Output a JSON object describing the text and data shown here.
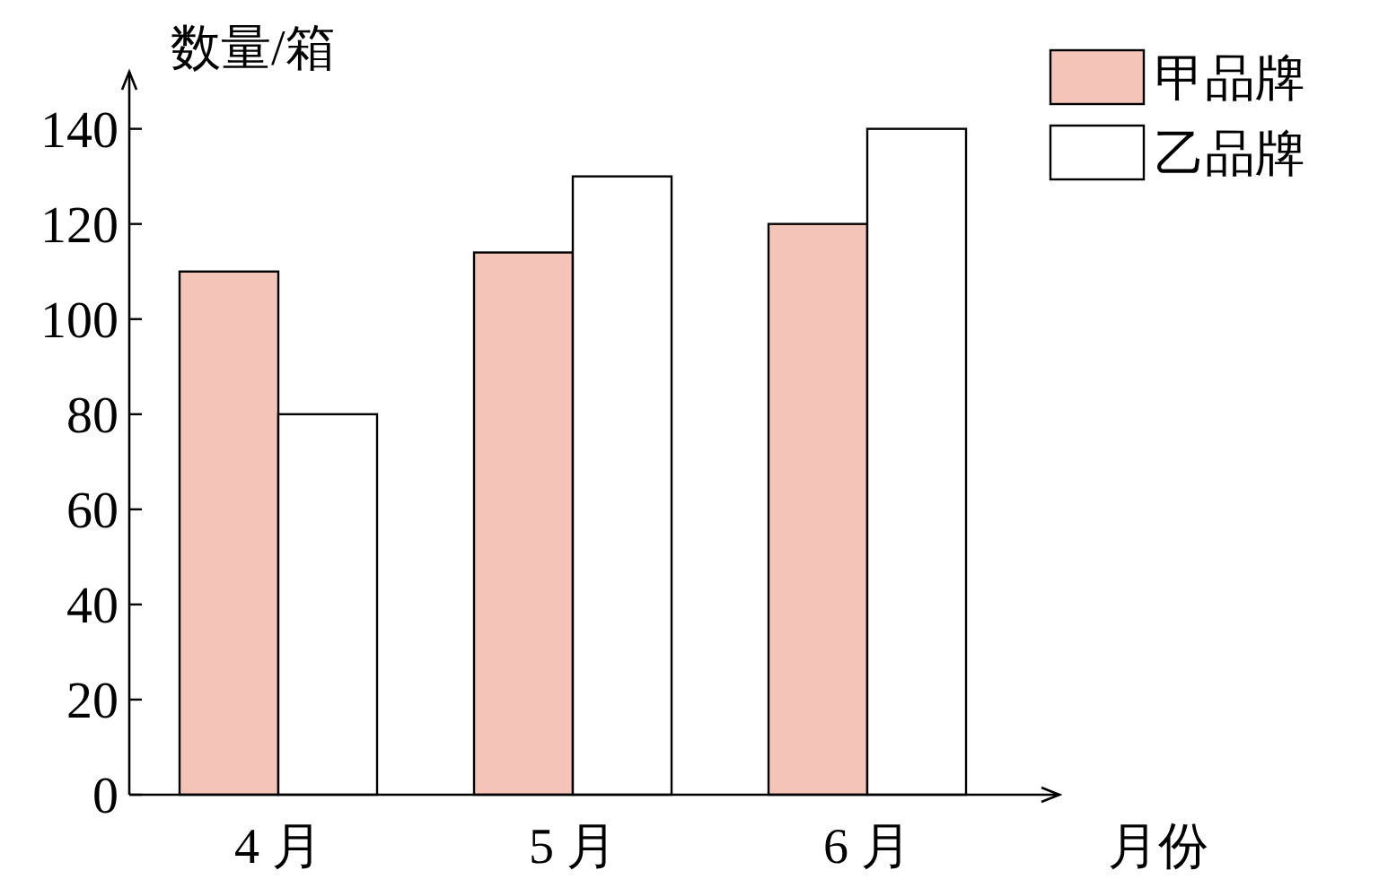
{
  "chart_data": {
    "type": "bar",
    "ylabel": "数量/箱",
    "xlabel": "月份",
    "categories": [
      "4 月",
      "5 月",
      "6 月"
    ],
    "series": [
      {
        "name": "甲品牌",
        "color": "#f4c4b8",
        "values": [
          110,
          114,
          120
        ]
      },
      {
        "name": "乙品牌",
        "color": "#ffffff",
        "values": [
          80,
          130,
          140
        ]
      }
    ],
    "ylim": [
      0,
      152
    ],
    "yticks": [
      0,
      20,
      40,
      60,
      80,
      100,
      120,
      140
    ],
    "legend": "top right"
  }
}
